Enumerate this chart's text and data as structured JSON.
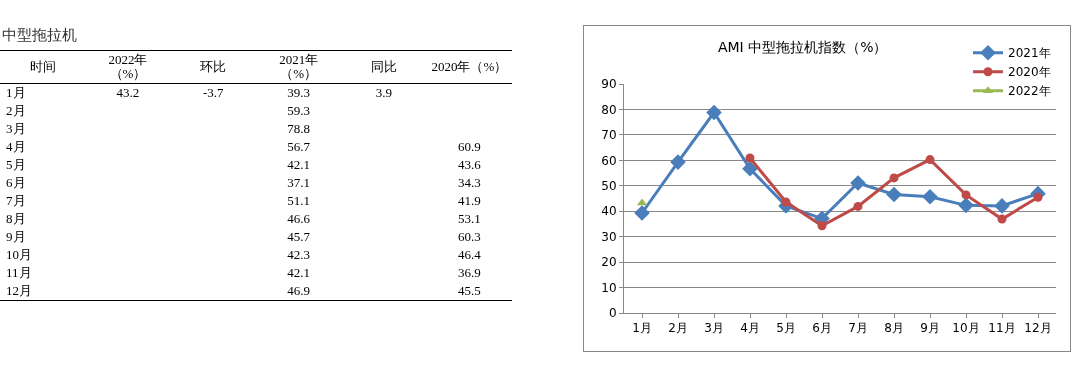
{
  "chart_data": [
    {
      "type": "heatmap",
      "title": "中型拖拉机",
      "ylabel": "时间",
      "data_labels": true,
      "categories": [
        "2022年（%）",
        "环比",
        "2021年（%）",
        "同比",
        "2020年（%）"
      ],
      "y_categories": [
        "1月",
        "2月",
        "3月",
        "4月",
        "5月",
        "6月",
        "7月",
        "8月",
        "9月",
        "10月",
        "11月",
        "12月"
      ],
      "cells": [
        [
          43.2,
          -3.7,
          39.3,
          3.9,
          null
        ],
        [
          null,
          null,
          59.3,
          null,
          null
        ],
        [
          null,
          null,
          78.8,
          null,
          null
        ],
        [
          null,
          null,
          56.7,
          null,
          60.9
        ],
        [
          null,
          null,
          42.1,
          null,
          43.6
        ],
        [
          null,
          null,
          37.1,
          null,
          34.3
        ],
        [
          null,
          null,
          51.1,
          null,
          41.9
        ],
        [
          null,
          null,
          46.6,
          null,
          53.1
        ],
        [
          null,
          null,
          45.7,
          null,
          60.3
        ],
        [
          null,
          null,
          42.3,
          null,
          46.4
        ],
        [
          null,
          null,
          42.1,
          null,
          36.9
        ],
        [
          null,
          null,
          46.9,
          null,
          45.5
        ]
      ]
    },
    {
      "type": "line",
      "title": "AMI 中型拖拉机指数（%）",
      "categories": [
        "1月",
        "2月",
        "3月",
        "4月",
        "5月",
        "6月",
        "7月",
        "8月",
        "9月",
        "10月",
        "11月",
        "12月"
      ],
      "series": [
        {
          "name": "2021年",
          "color": "#4a7ebb",
          "marker": "diamond",
          "values": [
            39.3,
            59.3,
            78.8,
            56.7,
            42.1,
            37.1,
            51.1,
            46.6,
            45.7,
            42.3,
            42.1,
            46.9
          ]
        },
        {
          "name": "2020年",
          "color": "#be4b48",
          "marker": "circle",
          "values": [
            null,
            null,
            null,
            60.9,
            43.6,
            34.3,
            41.9,
            53.1,
            60.3,
            46.4,
            36.9,
            45.5
          ]
        },
        {
          "name": "2022年",
          "color": "#98b954",
          "marker": "triangle",
          "values": [
            43.2,
            null,
            null,
            null,
            null,
            null,
            null,
            null,
            null,
            null,
            null,
            null
          ]
        }
      ],
      "ylim": [
        0,
        90
      ],
      "yticks": [
        0,
        10,
        20,
        30,
        40,
        50,
        60,
        70,
        80,
        90
      ],
      "grid": "y",
      "legend": "top right",
      "line_style": "solid"
    }
  ]
}
